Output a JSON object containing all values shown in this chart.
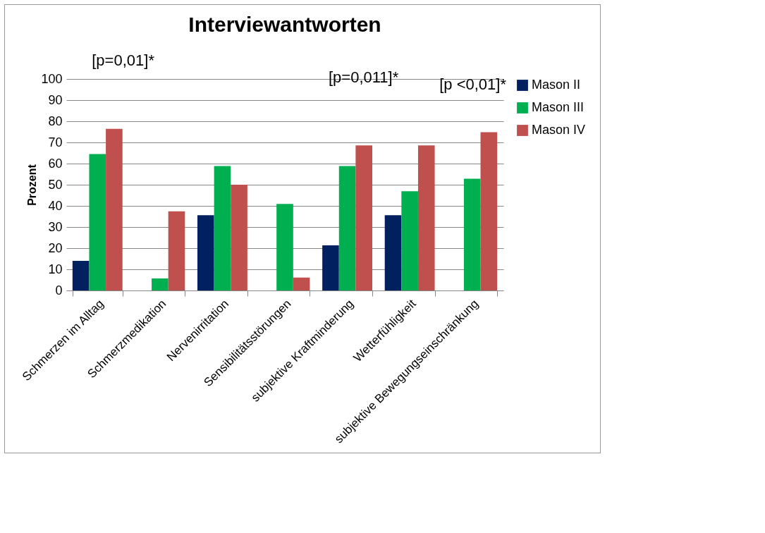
{
  "chart_data": {
    "type": "bar",
    "title": "Interviewantworten",
    "ylabel": "Prozent",
    "categories": [
      "Schmerzen im Alltag",
      "Schmerzmedikation",
      "Nervenirritation",
      "Sensibilitätsstörungen",
      "subjektive Kraftminderung",
      "Wetterfühligkeit",
      "subjektive Bewegungseinschränkung"
    ],
    "series": [
      {
        "name": "Mason II",
        "color": "#002060",
        "values": [
          14,
          0,
          35.6,
          0,
          21.3,
          35.6,
          0
        ]
      },
      {
        "name": "Mason III",
        "color": "#00b050",
        "values": [
          64.5,
          5.7,
          58.8,
          40.9,
          58.8,
          46.9,
          52.8
        ]
      },
      {
        "name": "Mason IV",
        "color": "#c0504d",
        "values": [
          76.4,
          37.4,
          50,
          6.1,
          68.6,
          68.6,
          74.8
        ]
      }
    ],
    "ylim": [
      0,
      100
    ],
    "yticks": [
      0,
      10,
      20,
      30,
      40,
      50,
      60,
      70,
      80,
      90,
      100
    ],
    "grid": "y",
    "legend": "right",
    "annotations": [
      "[p=0,01]*",
      "[p=0,011]*",
      "[p <0,01]*"
    ]
  }
}
